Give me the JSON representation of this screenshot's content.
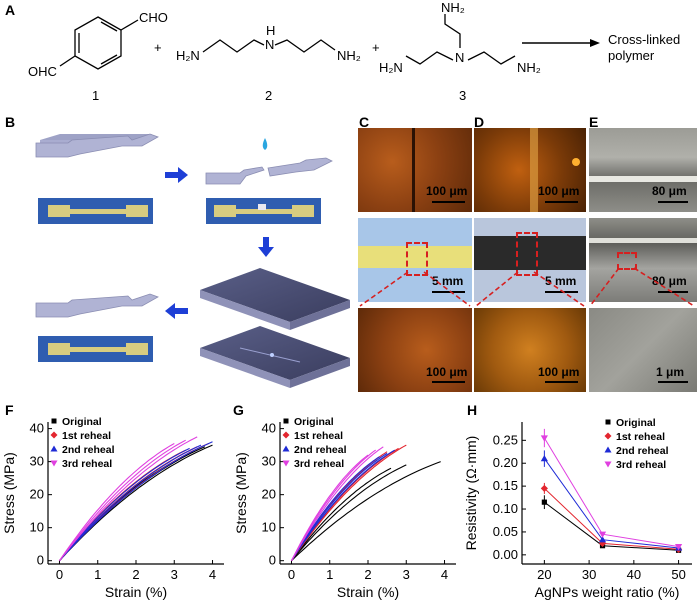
{
  "panels": {
    "A": "A",
    "B": "B",
    "C": "C",
    "D": "D",
    "E": "E",
    "F": "F",
    "G": "G",
    "H": "H"
  },
  "scheme": {
    "compound_numbers": [
      "1",
      "2",
      "3"
    ],
    "plus": "+",
    "product": "Cross-linked polymer",
    "product_line1": "Cross-linked",
    "product_line2": "polymer",
    "groups": {
      "cho_top": "CHO",
      "ohc_bottom": "OHC",
      "h2n_left": "H₂N",
      "nh2_right": "NH₂",
      "nh_h": "H",
      "n_center": "N",
      "nh2_top": "NH₂",
      "h2n_3": "H₂N",
      "nh2_3": "NH₂"
    }
  },
  "scalebars": {
    "c_top": "100 μm",
    "c_mid": "5 mm",
    "c_bot": "100 μm",
    "d_top": "100 μm",
    "d_mid": "5 mm",
    "d_bot": "100 μm",
    "e_top": "80 μm",
    "e_mid": "80 μm",
    "e_bot": "1 μm"
  },
  "legend_labels": [
    "Original",
    "1st reheal",
    "2nd reheal",
    "3rd reheal"
  ],
  "colors": {
    "original": "#000000",
    "reheal1": "#e3262f",
    "reheal2": "#1f2bd6",
    "reheal3": "#e040e0",
    "arrow": "#1e3fd6",
    "sample": "#a5a7c9",
    "film": "#d8cc80",
    "dashed": "#d62020"
  },
  "chart_data": [
    {
      "panel": "F",
      "type": "line",
      "xlabel": "Strain (%)",
      "ylabel": "Stress (MPa)",
      "xlim": [
        -0.3,
        4.3
      ],
      "ylim": [
        -1,
        42
      ],
      "xticks": [
        0,
        1,
        2,
        3,
        4
      ],
      "yticks": [
        0,
        10,
        20,
        30,
        40
      ],
      "series": [
        {
          "name": "Original",
          "curves": [
            {
              "xmax": 4.0,
              "ymax": 35.0
            },
            {
              "xmax": 3.8,
              "ymax": 34.5
            },
            {
              "xmax": 3.5,
              "ymax": 33.0
            }
          ]
        },
        {
          "name": "1st reheal",
          "curves": [
            {
              "xmax": 3.9,
              "ymax": 35.5
            },
            {
              "xmax": 3.6,
              "ymax": 34.5
            },
            {
              "xmax": 3.3,
              "ymax": 33.5
            }
          ]
        },
        {
          "name": "2nd reheal",
          "curves": [
            {
              "xmax": 4.0,
              "ymax": 36.0
            },
            {
              "xmax": 3.7,
              "ymax": 35.0
            },
            {
              "xmax": 3.4,
              "ymax": 34.0
            }
          ]
        },
        {
          "name": "3rd reheal",
          "curves": [
            {
              "xmax": 3.6,
              "ymax": 37.5
            },
            {
              "xmax": 3.3,
              "ymax": 36.5
            },
            {
              "xmax": 3.0,
              "ymax": 35.5
            }
          ]
        }
      ]
    },
    {
      "panel": "G",
      "type": "line",
      "xlabel": "Strain (%)",
      "ylabel": "Stress (MPa)",
      "xlim": [
        -0.3,
        4.3
      ],
      "ylim": [
        -1,
        42
      ],
      "xticks": [
        0,
        1,
        2,
        3,
        4
      ],
      "yticks": [
        0,
        10,
        20,
        30,
        40
      ],
      "series": [
        {
          "name": "Original",
          "curves": [
            {
              "xmax": 3.9,
              "ymax": 30.0
            },
            {
              "xmax": 3.0,
              "ymax": 29.0
            },
            {
              "xmax": 2.6,
              "ymax": 28.0
            }
          ]
        },
        {
          "name": "1st reheal",
          "curves": [
            {
              "xmax": 3.0,
              "ymax": 35.0
            },
            {
              "xmax": 2.8,
              "ymax": 34.0
            },
            {
              "xmax": 2.5,
              "ymax": 33.0
            }
          ]
        },
        {
          "name": "2nd reheal",
          "curves": [
            {
              "xmax": 2.7,
              "ymax": 33.5
            },
            {
              "xmax": 2.5,
              "ymax": 32.5
            },
            {
              "xmax": 2.3,
              "ymax": 31.5
            }
          ]
        },
        {
          "name": "3rd reheal",
          "curves": [
            {
              "xmax": 2.4,
              "ymax": 34.5
            },
            {
              "xmax": 2.2,
              "ymax": 33.5
            },
            {
              "xmax": 2.0,
              "ymax": 32.0
            }
          ]
        }
      ]
    },
    {
      "panel": "H",
      "type": "line",
      "xlabel": "AgNPs weight ratio (%)",
      "ylabel": "Resistivity (Ω·mm)",
      "xlim": [
        15,
        53
      ],
      "ylim": [
        -0.02,
        0.29
      ],
      "xticks": [
        20,
        30,
        40,
        50
      ],
      "yticks": [
        0.0,
        0.05,
        0.1,
        0.15,
        0.2,
        0.25
      ],
      "x": [
        20,
        33,
        50
      ],
      "series": [
        {
          "name": "Original",
          "values": [
            0.115,
            0.02,
            0.01
          ],
          "errors": [
            0.015,
            0.003,
            0.002
          ]
        },
        {
          "name": "1st reheal",
          "values": [
            0.145,
            0.025,
            0.012
          ],
          "errors": [
            0.012,
            0.003,
            0.002
          ]
        },
        {
          "name": "2nd reheal",
          "values": [
            0.21,
            0.033,
            0.015
          ],
          "errors": [
            0.018,
            0.003,
            0.002
          ]
        },
        {
          "name": "3rd reheal",
          "values": [
            0.255,
            0.045,
            0.018
          ],
          "errors": [
            0.02,
            0.004,
            0.002
          ]
        }
      ]
    }
  ]
}
